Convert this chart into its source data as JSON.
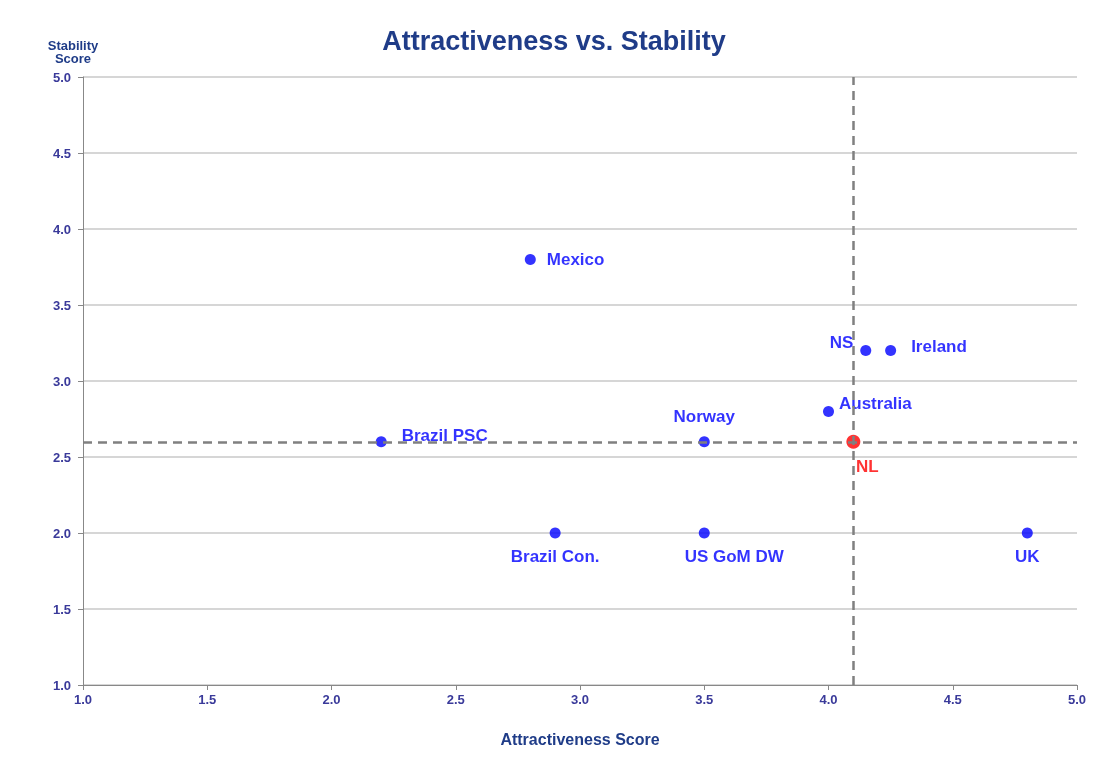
{
  "chart_data": {
    "type": "scatter",
    "title": "Attractiveness vs. Stability",
    "xlabel": "Attractiveness Score",
    "ylabel": "Stability Score",
    "xlim": [
      1.0,
      5.0
    ],
    "xticks": [
      {
        "value": 1,
        "label": "1.0"
      },
      1.5,
      {
        "value": 2,
        "label": "2.0"
      },
      2.5,
      {
        "value": 3,
        "label": "3.0"
      },
      3.5,
      {
        "value": 4,
        "label": "4.0"
      },
      4.5,
      {
        "value": 5,
        "label": "5.0"
      }
    ],
    "ylim": [
      1.0,
      5.0
    ],
    "yticks": [
      {
        "value": 1,
        "label": "1.0"
      },
      1.5,
      {
        "value": 2,
        "label": "2.0"
      },
      2.5,
      {
        "value": 3,
        "label": "3.0"
      },
      3.5,
      {
        "value": 4,
        "label": "4.0"
      },
      4.5,
      {
        "value": 5,
        "label": "5.0"
      }
    ],
    "grid": "y",
    "marker": "circle",
    "legend": false,
    "series": [
      {
        "name": "Mexico",
        "color": "#0000ff",
        "x": [
          2.8
        ],
        "values": [
          3.8
        ]
      },
      {
        "name": "NS",
        "color": "#0000ff",
        "x": [
          4.15
        ],
        "values": [
          3.2
        ]
      },
      {
        "name": "Ireland",
        "color": "#0000ff",
        "x": [
          4.25
        ],
        "values": [
          3.2
        ]
      },
      {
        "name": "Australia",
        "color": "#0000ff",
        "x": [
          4.0
        ],
        "values": [
          2.8
        ]
      },
      {
        "name": "Norway",
        "color": "#0000ff",
        "x": [
          3.5
        ],
        "values": [
          2.6
        ]
      },
      {
        "name": "Brazil PSC",
        "color": "#0000ff",
        "x": [
          2.2
        ],
        "values": [
          2.6
        ]
      },
      {
        "name": "NL",
        "color": "#ff0000",
        "x": [
          4.1
        ],
        "values": [
          2.6
        ]
      },
      {
        "name": "Brazil Con.",
        "color": "#0000ff",
        "x": [
          2.9
        ],
        "values": [
          2.0
        ]
      },
      {
        "name": "US GoM DW",
        "color": "#0000ff",
        "x": [
          3.5
        ],
        "values": [
          2.0
        ]
      },
      {
        "name": "UK",
        "color": "#0000ff",
        "x": [
          4.8
        ],
        "values": [
          2.0
        ]
      }
    ],
    "ref_lines": [
      {
        "axis": "x",
        "value": 4.1,
        "color": "#808080",
        "line_style": "dashed"
      },
      {
        "axis": "y",
        "value": 2.6,
        "color": "#808080",
        "line_style": "dashed"
      }
    ]
  }
}
